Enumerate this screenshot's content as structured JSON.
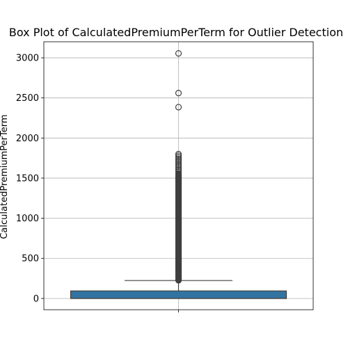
{
  "chart_data": {
    "type": "box",
    "title": "Box Plot of CalculatedPremiumPerTerm for Outlier Detection",
    "xlabel": "",
    "ylabel": "CalculatedPremiumPerTerm",
    "ylim": [
      -140,
      3200
    ],
    "yticks": [
      0,
      500,
      1000,
      1500,
      2000,
      2500,
      3000
    ],
    "grid": true,
    "box": {
      "min": 0,
      "q1": 0,
      "median": 0,
      "q3": 94,
      "whisker_low": 0,
      "whisker_high": 224,
      "color": "#3274a1"
    },
    "outliers_dense_range": [
      226,
      1560
    ],
    "outliers": [
      1580,
      1600,
      1620,
      1640,
      1660,
      1680,
      1700,
      1720,
      1740,
      1760,
      1780,
      1800,
      2385,
      2560,
      3055
    ]
  }
}
